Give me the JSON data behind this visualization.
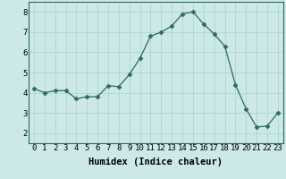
{
  "x": [
    0,
    1,
    2,
    3,
    4,
    5,
    6,
    7,
    8,
    9,
    10,
    11,
    12,
    13,
    14,
    15,
    16,
    17,
    18,
    19,
    20,
    21,
    22,
    23
  ],
  "y": [
    4.2,
    4.0,
    4.1,
    4.1,
    3.7,
    3.8,
    3.8,
    4.35,
    4.3,
    4.9,
    5.7,
    6.8,
    7.0,
    7.3,
    7.9,
    8.0,
    7.4,
    6.9,
    6.3,
    4.4,
    3.2,
    2.3,
    2.35,
    3.0
  ],
  "line_color": "#2e6b5e",
  "marker": "D",
  "marker_size": 2.5,
  "bg_color": "#cce8e8",
  "grid_color": "#b0d4d4",
  "xlabel": "Humidex (Indice chaleur)",
  "xlim": [
    -0.5,
    23.5
  ],
  "ylim": [
    1.5,
    8.5
  ],
  "yticks": [
    2,
    3,
    4,
    5,
    6,
    7,
    8
  ],
  "xticks": [
    0,
    1,
    2,
    3,
    4,
    5,
    6,
    7,
    8,
    9,
    10,
    11,
    12,
    13,
    14,
    15,
    16,
    17,
    18,
    19,
    20,
    21,
    22,
    23
  ],
  "tick_label_fontsize": 6.5,
  "xlabel_fontsize": 7.5
}
